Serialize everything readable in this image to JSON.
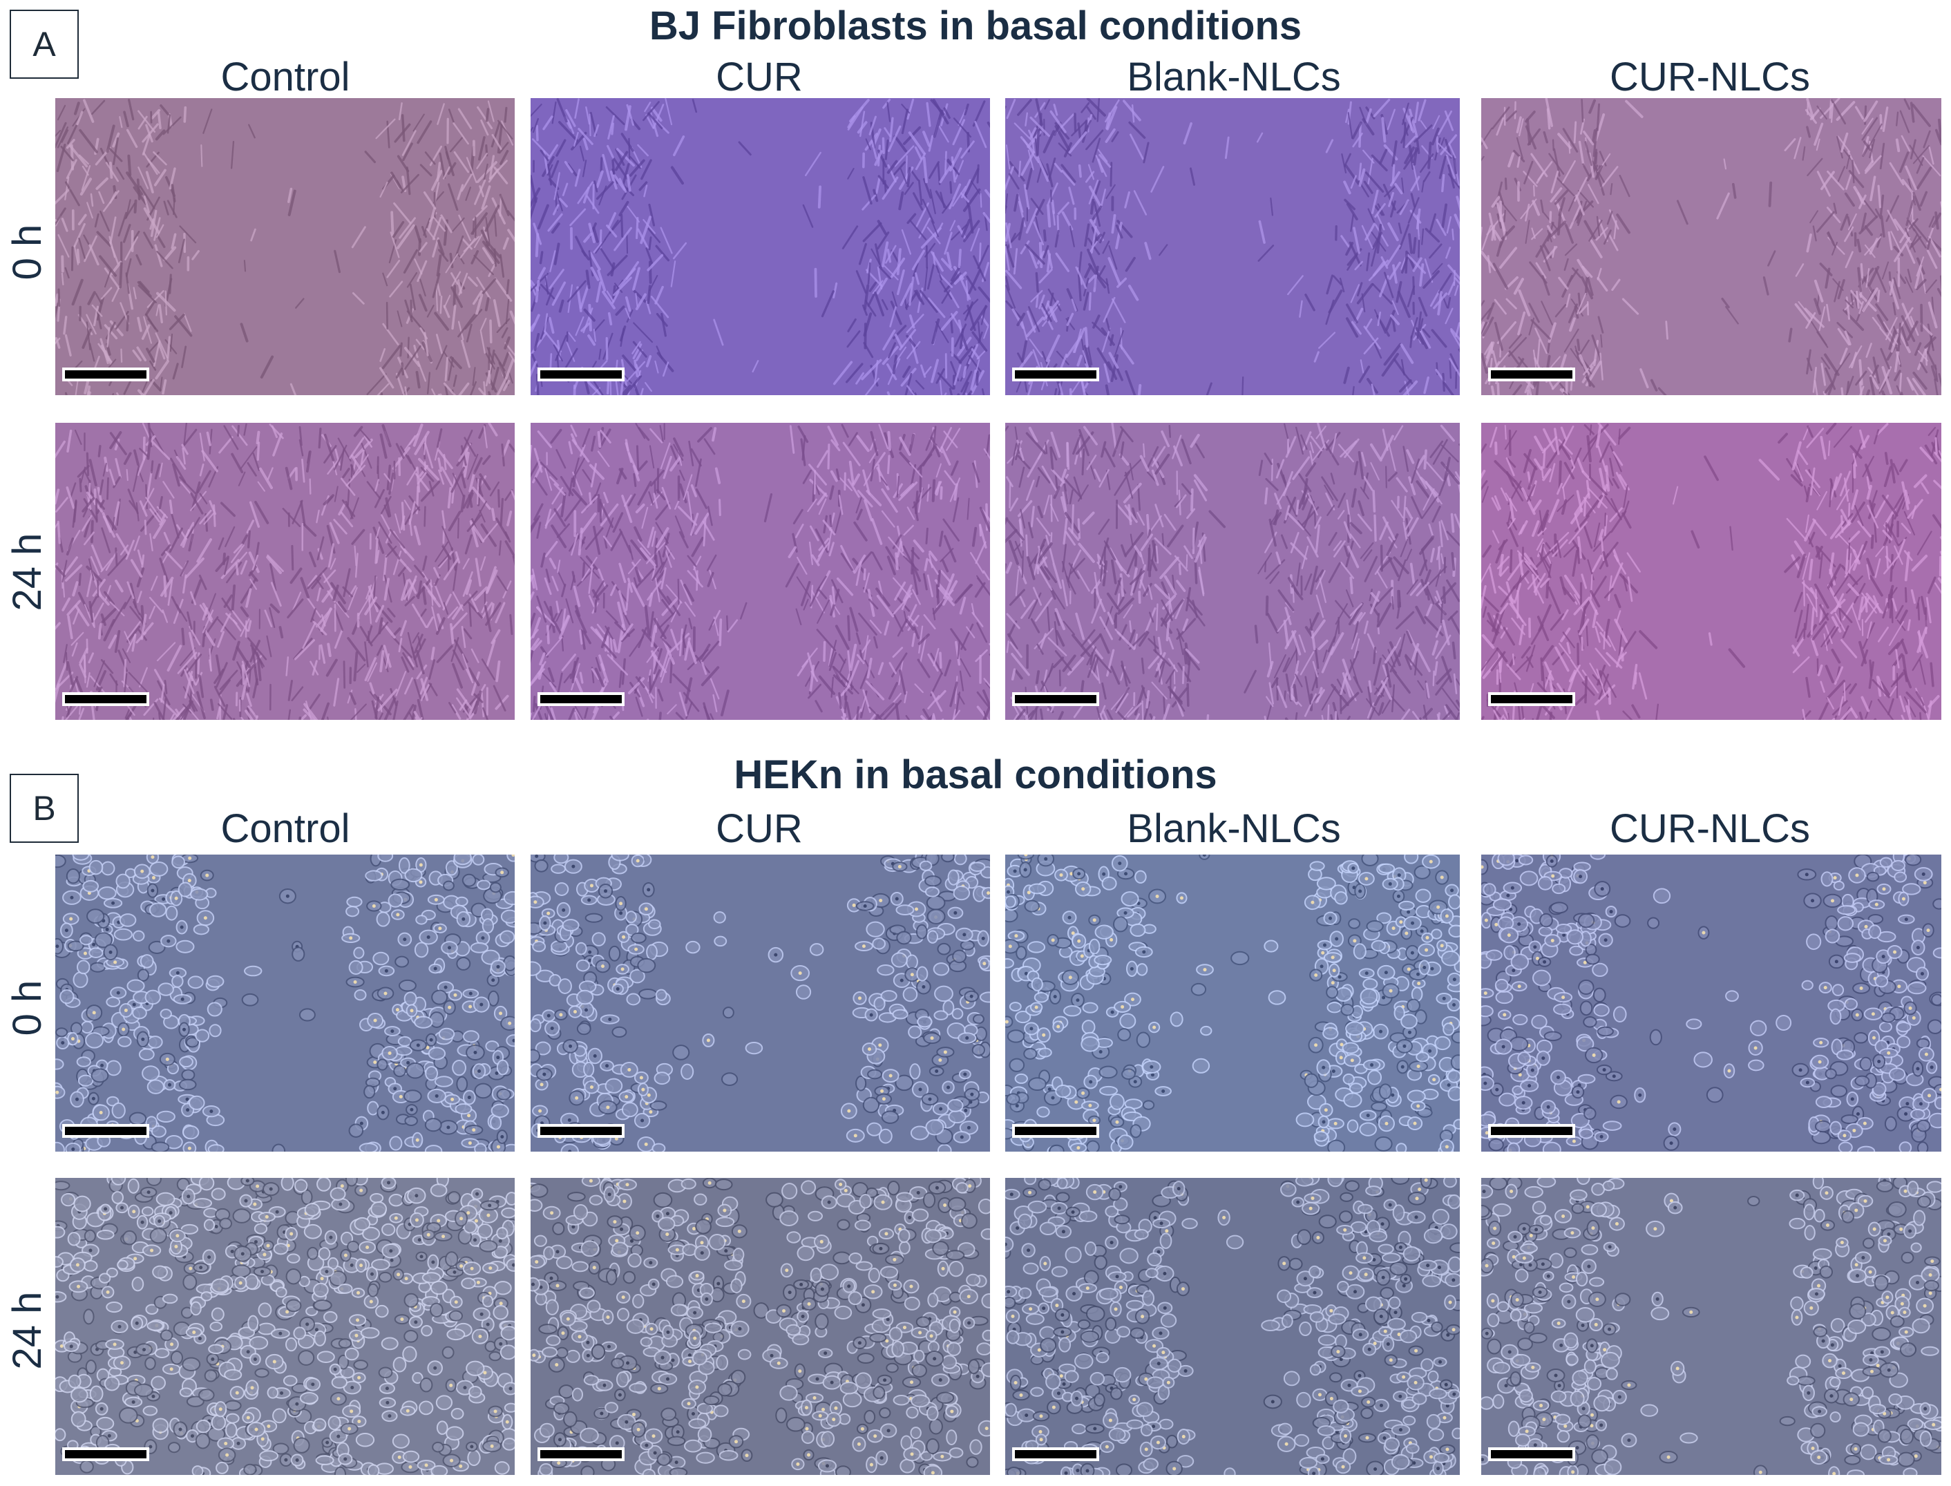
{
  "panels": [
    {
      "tag": "A",
      "title": "BJ Fibroblasts in basal conditions",
      "columns": [
        "Control",
        "CUR",
        "Blank-NLCs",
        "CUR-NLCs"
      ],
      "rows": [
        "0 h",
        "24 h"
      ],
      "cell_type": "fibroblast",
      "colors": {
        "0 h": [
          "#9d7a9a",
          "#7f66bf",
          "#8268bd",
          "#a17ba4"
        ],
        "24 h": [
          "#a073a9",
          "#9d70b0",
          "#9a72ae",
          "#a86fae"
        ]
      },
      "gap_fraction": {
        "0 h": [
          0.45,
          0.42,
          0.47,
          0.42
        ],
        "24 h": [
          0.05,
          0.18,
          0.15,
          0.35
        ]
      }
    },
    {
      "tag": "B",
      "title": "HEKn in basal conditions",
      "columns": [
        "Control",
        "CUR",
        "Blank-NLCs",
        "CUR-NLCs"
      ],
      "rows": [
        "0 h",
        "24 h"
      ],
      "cell_type": "keratinocyte",
      "colors": {
        "0 h": [
          "#6f7aa0",
          "#6e79a0",
          "#6f7ea6",
          "#6e76a0"
        ],
        "24 h": [
          "#7a7f99",
          "#737893",
          "#6d7595",
          "#747a98"
        ]
      },
      "gap_fraction": {
        "0 h": [
          0.32,
          0.45,
          0.37,
          0.43
        ],
        "24 h": [
          0.0,
          0.1,
          0.22,
          0.38
        ]
      }
    }
  ]
}
